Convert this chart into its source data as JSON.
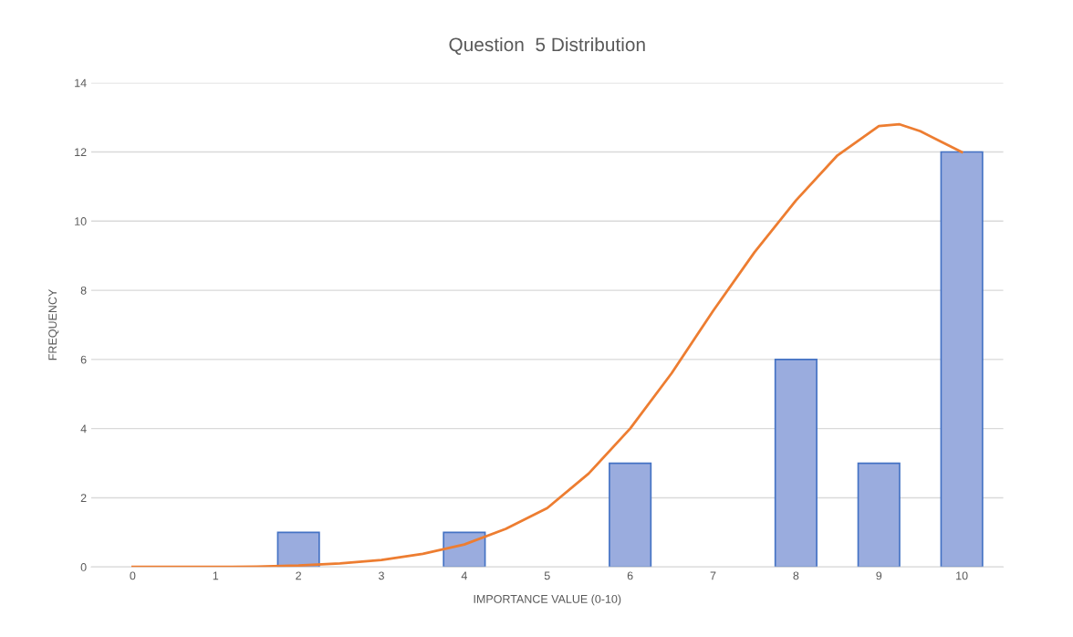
{
  "chart_data": {
    "type": "bar",
    "title": "Question  5 Distribution",
    "xlabel": "IMPORTANCE VALUE (0-10)",
    "ylabel": "FREQUENCY",
    "x": [
      0,
      1,
      2,
      3,
      4,
      5,
      6,
      7,
      8,
      9,
      10
    ],
    "series": [
      {
        "color": "#9aacde",
        "values": [
          0,
          0,
          1,
          0,
          1,
          0,
          3,
          0,
          6,
          3,
          12
        ]
      },
      {
        "type": "line",
        "color": "#ed7d31",
        "x": [
          0,
          0.5,
          1,
          1.5,
          2,
          2.5,
          3,
          3.5,
          4,
          4.5,
          5,
          5.5,
          6,
          6.5,
          7,
          7.5,
          8,
          8.5,
          9,
          9.25,
          9.5,
          9.75,
          10
        ],
        "values": [
          0,
          0,
          0,
          0.01,
          0.04,
          0.1,
          0.2,
          0.38,
          0.65,
          1.1,
          1.7,
          2.7,
          4.0,
          5.6,
          7.4,
          9.1,
          10.6,
          11.9,
          12.75,
          12.8,
          12.6,
          12.3,
          12
        ]
      }
    ],
    "xlim": [
      -0.5,
      10.5
    ],
    "xticks": [
      0,
      1,
      2,
      3,
      4,
      5,
      6,
      7,
      8,
      9,
      10
    ],
    "ylim": [
      0,
      14
    ],
    "yticks": [
      0,
      2,
      4,
      6,
      8,
      10,
      12,
      14
    ],
    "grid": "y",
    "legend": false,
    "marker": "none",
    "line_style": "solid"
  }
}
